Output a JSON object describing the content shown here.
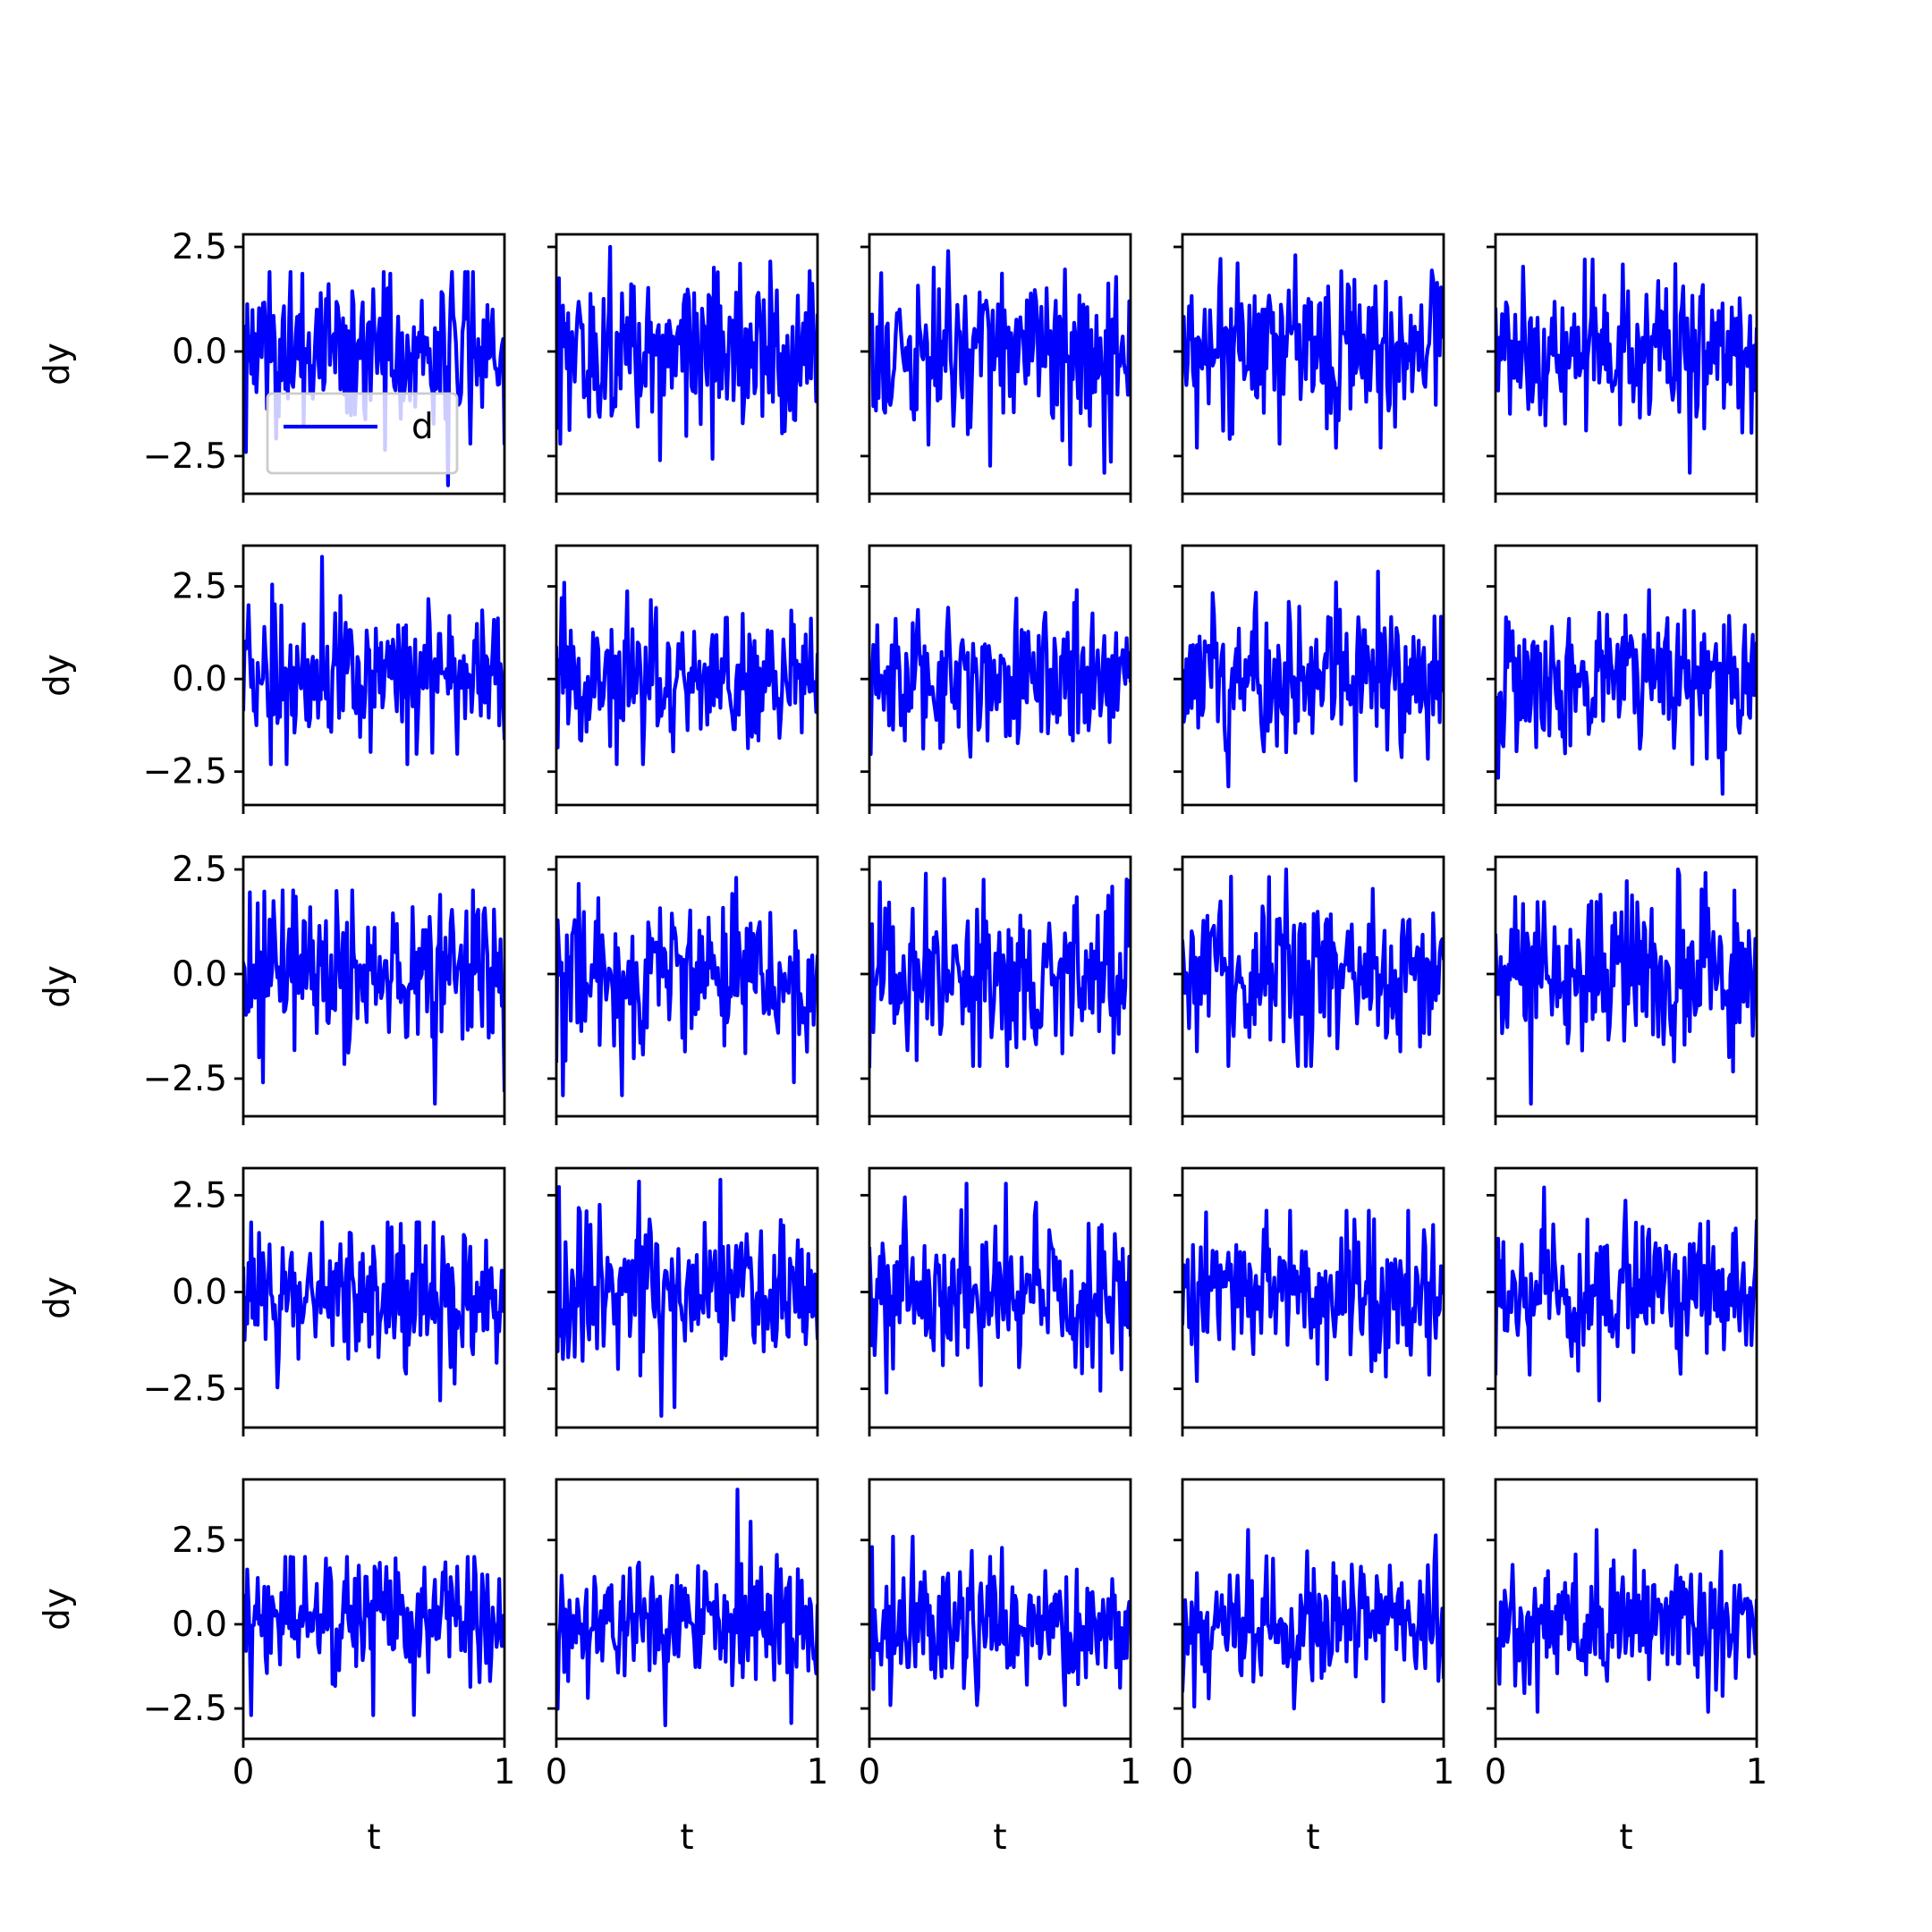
{
  "figure": {
    "layout": "5x5 grid of small multiples",
    "sharex": true,
    "sharey_per_row": true
  },
  "chart_data": {
    "type": "line",
    "rows": 5,
    "cols": 5,
    "xlabel": "t",
    "ylabel": "dy",
    "xlim": [
      0,
      1
    ],
    "xticks": [
      "0",
      "1"
    ],
    "series_color": "#0000ff",
    "legend": {
      "label": "d",
      "location": "lower-left",
      "panel": [
        0,
        0
      ]
    },
    "row_ylims": [
      [
        -3.4,
        2.8
      ],
      [
        -3.4,
        3.6
      ],
      [
        -3.4,
        2.8
      ],
      [
        -3.5,
        3.2
      ],
      [
        -3.4,
        4.3
      ]
    ],
    "row_yticks": [
      [
        "2.5",
        "0.0",
        "−2.5"
      ],
      [
        "2.5",
        "0.0",
        "−2.5"
      ],
      [
        "2.5",
        "0.0",
        "−2.5"
      ],
      [
        "2.5",
        "0.0",
        "−2.5"
      ],
      [
        "2.5",
        "0.0",
        "−2.5"
      ]
    ],
    "row_ytick_values": [
      [
        2.5,
        0.0,
        -2.5
      ],
      [
        2.5,
        0.0,
        -2.5
      ],
      [
        2.5,
        0.0,
        -2.5
      ],
      [
        2.5,
        0.0,
        -2.5
      ],
      [
        2.5,
        0.0,
        -2.5
      ]
    ],
    "panels_approx_stats": [
      [
        {
          "min": -3.2,
          "max": 1.9
        },
        {
          "min": -2.6,
          "max": 2.5
        },
        {
          "min": -2.9,
          "max": 2.4
        },
        {
          "min": -2.3,
          "max": 2.3
        },
        {
          "min": -2.9,
          "max": 2.2
        }
      ],
      [
        {
          "min": -2.3,
          "max": 3.3
        },
        {
          "min": -2.3,
          "max": 2.6
        },
        {
          "min": -2.1,
          "max": 2.4
        },
        {
          "min": -2.9,
          "max": 2.9
        },
        {
          "min": -3.1,
          "max": 2.4
        }
      ],
      [
        {
          "min": -3.1,
          "max": 2.0
        },
        {
          "min": -2.9,
          "max": 2.3
        },
        {
          "min": -2.2,
          "max": 2.4
        },
        {
          "min": -2.2,
          "max": 2.5
        },
        {
          "min": -3.1,
          "max": 2.5
        }
      ],
      [
        {
          "min": -2.8,
          "max": 1.8
        },
        {
          "min": -3.2,
          "max": 2.9
        },
        {
          "min": -2.6,
          "max": 2.8
        },
        {
          "min": -2.3,
          "max": 2.1
        },
        {
          "min": -2.8,
          "max": 2.7
        }
      ],
      [
        {
          "min": -2.7,
          "max": 2.0
        },
        {
          "min": -3.0,
          "max": 4.0
        },
        {
          "min": -2.4,
          "max": 2.6
        },
        {
          "min": -2.5,
          "max": 2.8
        },
        {
          "min": -2.6,
          "max": 2.8
        }
      ]
    ],
    "points_per_series": 200
  }
}
